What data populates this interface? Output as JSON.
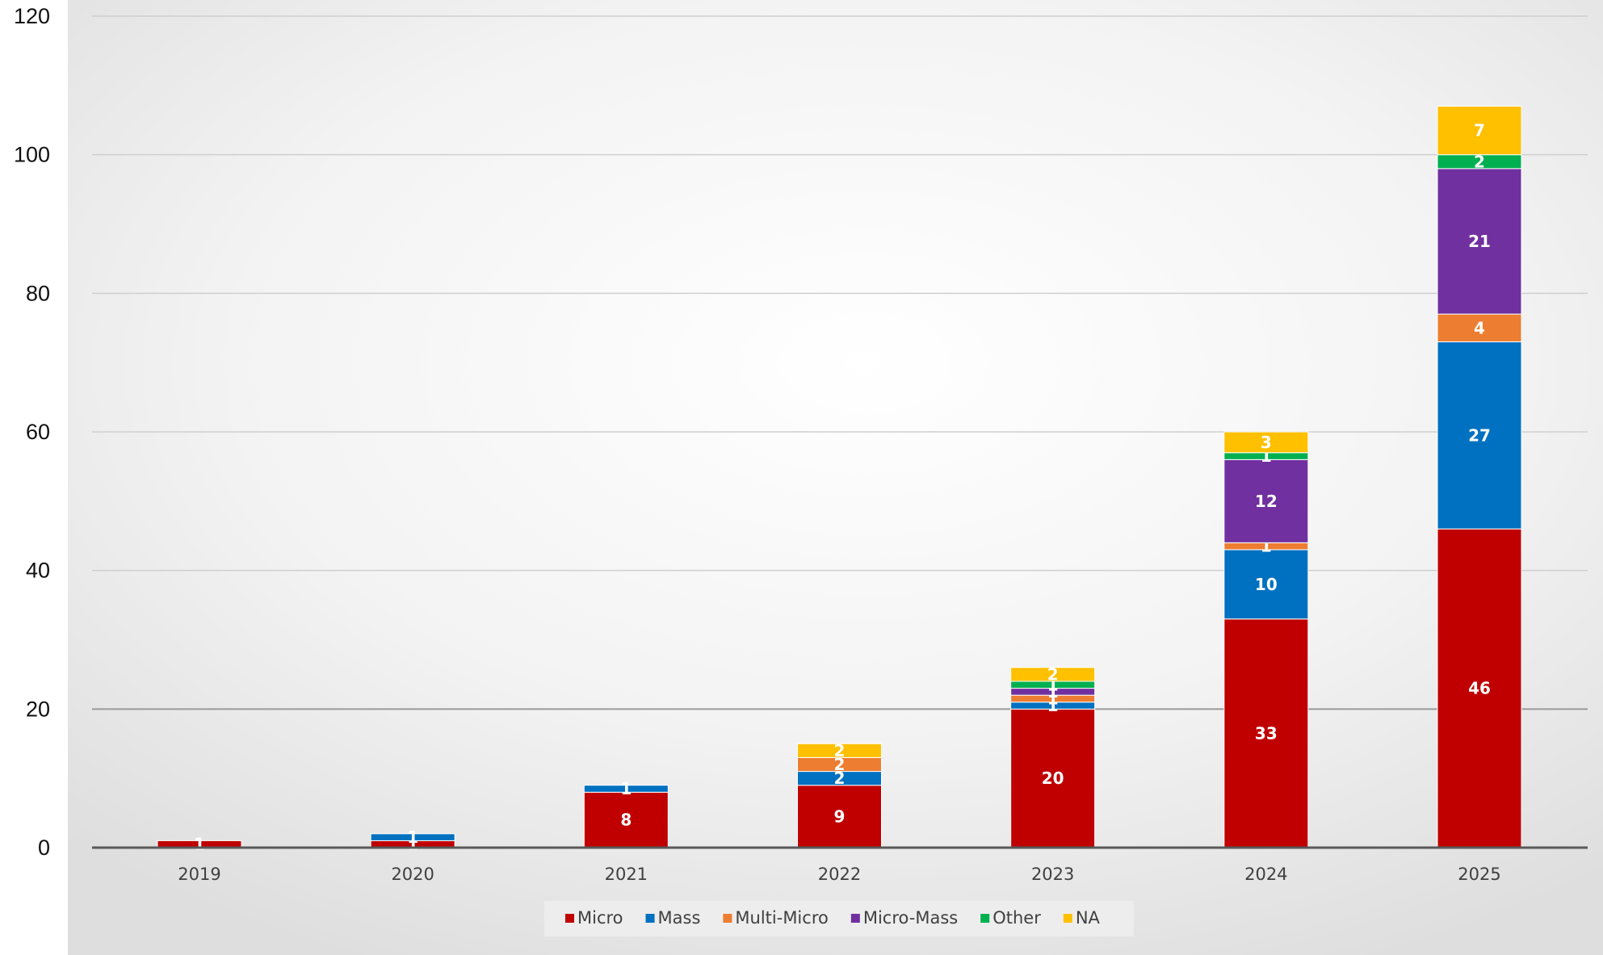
{
  "chart_data": {
    "type": "bar",
    "stacked": true,
    "categories": [
      "2019",
      "2020",
      "2021",
      "2022",
      "2023",
      "2024",
      "2025"
    ],
    "ylim": [
      0,
      120
    ],
    "yticks": [
      0,
      20,
      40,
      60,
      80,
      100,
      120
    ],
    "grid": true,
    "legend": "bottom",
    "series": [
      {
        "name": "Micro",
        "color": "#c00000",
        "values": [
          1,
          1,
          8,
          9,
          20,
          33,
          46
        ]
      },
      {
        "name": "Mass",
        "color": "#0070c0",
        "values": [
          0,
          1,
          1,
          2,
          1,
          10,
          27
        ]
      },
      {
        "name": "Multi-Micro",
        "color": "#ed7d31",
        "values": [
          0,
          0,
          0,
          2,
          1,
          1,
          4
        ]
      },
      {
        "name": "Micro-Mass",
        "color": "#7030a0",
        "values": [
          0,
          0,
          0,
          0,
          1,
          12,
          21
        ]
      },
      {
        "name": "Other",
        "color": "#00b050",
        "values": [
          0,
          0,
          0,
          0,
          1,
          1,
          2
        ]
      },
      {
        "name": "NA",
        "color": "#ffc000",
        "values": [
          0,
          0,
          0,
          2,
          2,
          3,
          7
        ]
      }
    ]
  }
}
